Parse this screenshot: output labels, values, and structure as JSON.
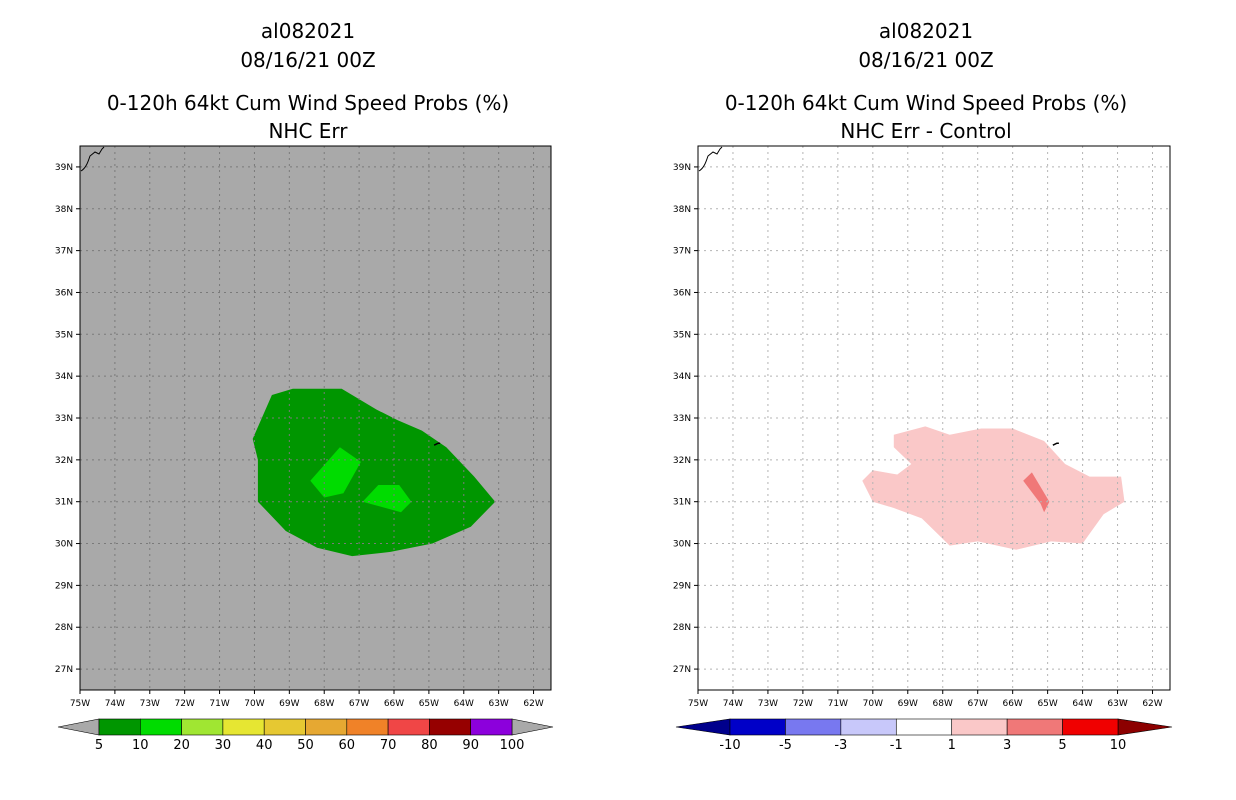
{
  "chart_data": [
    {
      "type": "filled-contour-map",
      "storm_id": "al082021",
      "datetime": "08/16/21 00Z",
      "title": "0-120h 64kt Cum Wind Speed Probs (%)",
      "subtitle": "NHC Err",
      "x_ticks": [
        "75W",
        "74W",
        "73W",
        "72W",
        "71W",
        "70W",
        "69W",
        "68W",
        "67W",
        "66W",
        "65W",
        "64W",
        "63W",
        "62W"
      ],
      "y_ticks": [
        "39N",
        "38N",
        "37N",
        "36N",
        "35N",
        "34N",
        "33N",
        "32N",
        "31N",
        "30N",
        "29N",
        "28N",
        "27N"
      ],
      "lon_range": [
        -75,
        -61.5
      ],
      "lat_range": [
        26.5,
        39.5
      ],
      "background": "#a9a9a9",
      "colorbar": {
        "labels": [
          "5",
          "10",
          "20",
          "30",
          "40",
          "50",
          "60",
          "70",
          "80",
          "90",
          "100"
        ],
        "colors": [
          "#009600",
          "#00dc00",
          "#a0e632",
          "#e6e632",
          "#e6c832",
          "#e6a832",
          "#f08228",
          "#f04646",
          "#960000",
          "#8c00dc"
        ],
        "ends": "#a9a9a9"
      },
      "regions": [
        {
          "name": "5-10%",
          "color": "#009600",
          "points": [
            [
              -70.05,
              32.5
            ],
            [
              -69.5,
              33.55
            ],
            [
              -68.9,
              33.7
            ],
            [
              -67.5,
              33.7
            ],
            [
              -66.5,
              33.2
            ],
            [
              -65.9,
              32.95
            ],
            [
              -65.2,
              32.7
            ],
            [
              -64.5,
              32.3
            ],
            [
              -63.7,
              31.6
            ],
            [
              -63.1,
              31.0
            ],
            [
              -63.8,
              30.4
            ],
            [
              -64.9,
              30.0
            ],
            [
              -66.1,
              29.8
            ],
            [
              -67.2,
              29.7
            ],
            [
              -68.2,
              29.9
            ],
            [
              -69.1,
              30.3
            ],
            [
              -69.9,
              31.0
            ],
            [
              -69.9,
              32.0
            ]
          ]
        },
        {
          "name": "10-20%",
          "color": "#00dc00",
          "points": [
            [
              -68.4,
              31.5
            ],
            [
              -67.55,
              32.3
            ],
            [
              -66.95,
              31.95
            ],
            [
              -67.45,
              31.2
            ],
            [
              -68.0,
              31.1
            ]
          ]
        },
        {
          "name": "10-20%",
          "color": "#00dc00",
          "points": [
            [
              -66.9,
              31.0
            ],
            [
              -66.45,
              31.4
            ],
            [
              -65.85,
              31.4
            ],
            [
              -65.5,
              31.0
            ],
            [
              -65.8,
              30.75
            ]
          ]
        }
      ]
    },
    {
      "type": "filled-contour-map",
      "storm_id": "al082021",
      "datetime": "08/16/21 00Z",
      "title": "0-120h 64kt Cum Wind Speed Probs (%)",
      "subtitle": "NHC Err - Control",
      "x_ticks": [
        "75W",
        "74W",
        "73W",
        "72W",
        "71W",
        "70W",
        "69W",
        "68W",
        "67W",
        "66W",
        "65W",
        "64W",
        "63W",
        "62W"
      ],
      "y_ticks": [
        "39N",
        "38N",
        "37N",
        "36N",
        "35N",
        "34N",
        "33N",
        "32N",
        "31N",
        "30N",
        "29N",
        "28N",
        "27N"
      ],
      "lon_range": [
        -75,
        -61.5
      ],
      "lat_range": [
        26.5,
        39.5
      ],
      "background": "#ffffff",
      "grid": true,
      "colorbar": {
        "labels": [
          "-10",
          "-5",
          "-3",
          "-1",
          "1",
          "3",
          "5",
          "10"
        ],
        "colors": [
          "#0000c8",
          "#7878f0",
          "#c8c8fa",
          "#ffffff",
          "#fac8c8",
          "#f07878",
          "#f00000"
        ],
        "left_end": "#00008c",
        "right_end": "#8c0000"
      },
      "regions": [
        {
          "name": "1-3",
          "color": "#fac8c8",
          "points": [
            [
              -69.4,
              32.6
            ],
            [
              -68.5,
              32.8
            ],
            [
              -67.8,
              32.6
            ],
            [
              -66.9,
              32.75
            ],
            [
              -66.0,
              32.75
            ],
            [
              -65.1,
              32.45
            ],
            [
              -64.5,
              31.9
            ],
            [
              -63.8,
              31.6
            ],
            [
              -62.9,
              31.6
            ],
            [
              -62.8,
              31.0
            ],
            [
              -63.4,
              30.7
            ],
            [
              -64.0,
              30.0
            ],
            [
              -64.9,
              30.05
            ],
            [
              -65.9,
              29.85
            ],
            [
              -67.0,
              30.05
            ],
            [
              -67.8,
              29.95
            ],
            [
              -68.6,
              30.6
            ],
            [
              -69.4,
              30.85
            ],
            [
              -70.0,
              31.0
            ],
            [
              -70.3,
              31.5
            ],
            [
              -70.0,
              31.75
            ],
            [
              -69.3,
              31.65
            ],
            [
              -68.9,
              31.9
            ],
            [
              -69.4,
              32.3
            ]
          ]
        },
        {
          "name": "3-5",
          "color": "#f07878",
          "points": [
            [
              -65.7,
              31.5
            ],
            [
              -65.45,
              31.7
            ],
            [
              -64.95,
              31.0
            ],
            [
              -65.1,
              30.75
            ],
            [
              -65.2,
              30.95
            ]
          ]
        }
      ]
    }
  ]
}
